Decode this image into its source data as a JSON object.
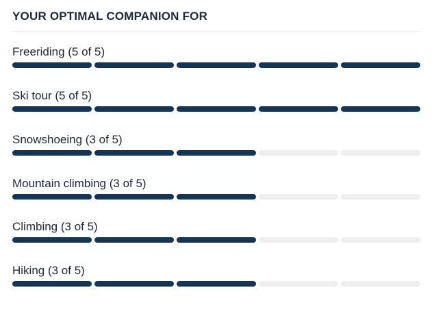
{
  "section": {
    "title": "YOUR OPTIMAL COMPANION FOR"
  },
  "colors": {
    "filled": "#143555",
    "empty": "#efefef"
  },
  "ratings": [
    {
      "label": "Freeriding (5 of 5)",
      "value": 5,
      "max": 5
    },
    {
      "label": "Ski tour (5 of 5)",
      "value": 5,
      "max": 5
    },
    {
      "label": "Snowshoeing (3 of 5)",
      "value": 3,
      "max": 5
    },
    {
      "label": "Mountain climbing (3 of 5)",
      "value": 3,
      "max": 5
    },
    {
      "label": "Climbing (3 of 5)",
      "value": 3,
      "max": 5
    },
    {
      "label": "Hiking (3 of 5)",
      "value": 3,
      "max": 5
    }
  ]
}
